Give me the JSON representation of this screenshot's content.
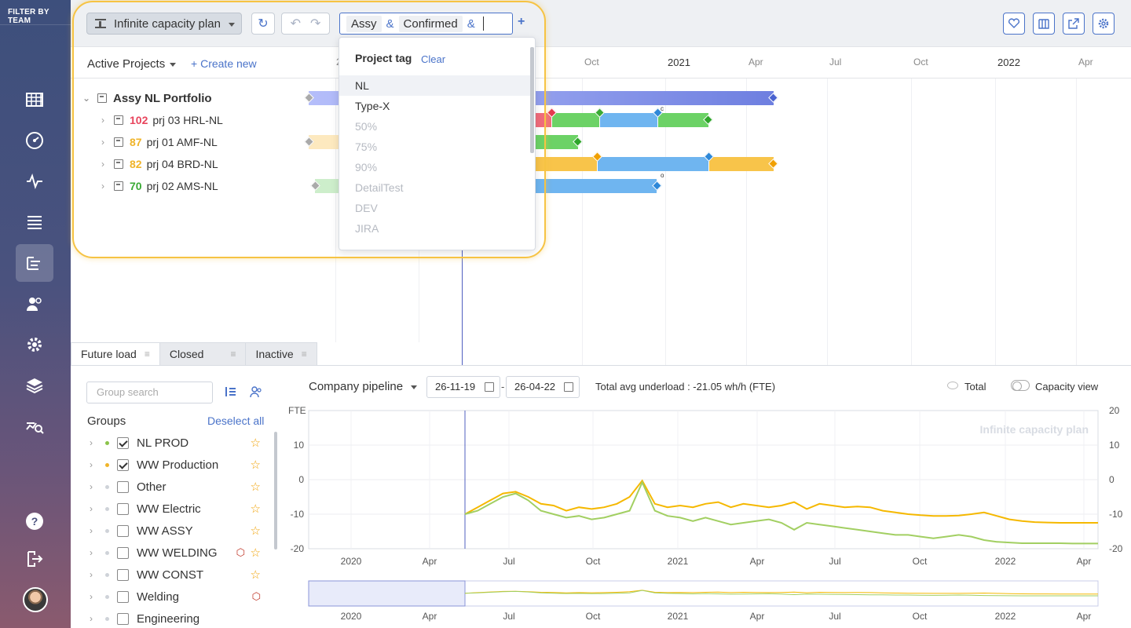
{
  "sidebar": {
    "header": "FILTER BY TEAM",
    "items": [
      {
        "name": "calendar-grid-icon"
      },
      {
        "name": "dashboard-gauge-icon"
      },
      {
        "name": "activity-pulse-icon"
      },
      {
        "name": "list-icon"
      },
      {
        "name": "gantt-icon",
        "active": true
      },
      {
        "name": "users-icon"
      },
      {
        "name": "settings-gear-icon"
      },
      {
        "name": "layers-icon"
      },
      {
        "name": "analytics-search-icon"
      }
    ],
    "help_icon": "help-icon",
    "logout_icon": "logout-icon"
  },
  "toolbar": {
    "plan_label": "Infinite capacity plan",
    "tags": [
      "Assy",
      "Confirmed"
    ],
    "amp": "&",
    "add": "+",
    "undo": "↶",
    "redo": "↷",
    "refresh": "↻"
  },
  "tag_dropdown": {
    "title": "Project tag",
    "clear": "Clear",
    "items": [
      {
        "label": "NL",
        "enabled": true
      },
      {
        "label": "Type-X",
        "enabled": true
      },
      {
        "label": "50%",
        "enabled": false
      },
      {
        "label": "75%",
        "enabled": false
      },
      {
        "label": "90%",
        "enabled": false
      },
      {
        "label": "DetailTest",
        "enabled": false
      },
      {
        "label": "DEV",
        "enabled": false
      },
      {
        "label": "JIRA",
        "enabled": false
      }
    ]
  },
  "timeline": {
    "view_label": "Active Projects",
    "create_new": "Create new",
    "months": [
      "Oct",
      "2021",
      "Apr",
      "Jul",
      "Oct",
      "2022",
      "Apr"
    ],
    "year_digit": "2"
  },
  "projects": {
    "portfolio": "Assy NL Portfolio",
    "rows": [
      {
        "score": "102",
        "name": "prj 03 HRL-NL",
        "score_color": "#e8455d"
      },
      {
        "score": "87",
        "name": "prj 01 AMF-NL",
        "score_color": "#f0b429"
      },
      {
        "score": "82",
        "name": "prj 04 BRD-NL",
        "score_color": "#f0b429"
      },
      {
        "score": "70",
        "name": "prj 02 AMS-NL",
        "score_color": "#3aaa35"
      }
    ],
    "marker_c": "c",
    "marker_o": "o"
  },
  "bottom_tabs": [
    {
      "label": "Future load",
      "active": true
    },
    {
      "label": "Closed",
      "active": false
    },
    {
      "label": "Inactive",
      "active": false
    }
  ],
  "groups_panel": {
    "search_placeholder": "Group search",
    "title": "Groups",
    "deselect": "Deselect all",
    "items": [
      {
        "label": "NL PROD",
        "checked": true,
        "dot": "#8bc34a",
        "cube": false
      },
      {
        "label": "WW Production",
        "checked": true,
        "dot": "#f0b429",
        "cube": false
      },
      {
        "label": "Other",
        "checked": false,
        "dot": "#cfd3d9",
        "cube": false
      },
      {
        "label": "WW Electric",
        "checked": false,
        "dot": "#cfd3d9",
        "cube": false
      },
      {
        "label": "WW ASSY",
        "checked": false,
        "dot": "#cfd3d9",
        "cube": false
      },
      {
        "label": "WW WELDING",
        "checked": false,
        "dot": "#cfd3d9",
        "cube": true
      },
      {
        "label": "WW CONST",
        "checked": false,
        "dot": "#cfd3d9",
        "cube": false
      },
      {
        "label": "Welding",
        "checked": false,
        "dot": "#cfd3d9",
        "cube": true,
        "no_star": true
      },
      {
        "label": "Engineering",
        "checked": false,
        "dot": "#cfd3d9",
        "cube": false,
        "no_star": true
      }
    ]
  },
  "chart_controls": {
    "pipeline": "Company pipeline",
    "date_from": "26-11-19",
    "date_to": "26-04-22",
    "date_sep": "-",
    "underload": "Total avg underload : -21.05 wh/h (FTE)",
    "total": "Total",
    "capacity_view": "Capacity view"
  },
  "chart_data": {
    "type": "line",
    "ylabel": "FTE",
    "watermark": "Infinite capacity plan",
    "ylim": [
      -20,
      20
    ],
    "yticks_left": [
      10,
      0,
      -10,
      -20
    ],
    "yticks_right": [
      20,
      10,
      0,
      -10,
      -20
    ],
    "xticks": [
      "2020",
      "Apr",
      "Jul",
      "Oct",
      "2021",
      "Apr",
      "Jul",
      "Oct",
      "2022",
      "Apr"
    ],
    "grid": true,
    "series": [
      {
        "color": "#f5b800",
        "x": [
          0,
          0.02,
          0.04,
          0.06,
          0.08,
          0.1,
          0.12,
          0.14,
          0.16,
          0.18,
          0.2,
          0.22,
          0.24,
          0.26,
          0.28,
          0.3,
          0.32,
          0.34,
          0.36,
          0.38,
          0.4,
          0.42,
          0.44,
          0.46,
          0.48,
          0.5,
          0.52,
          0.54,
          0.56,
          0.58,
          0.6,
          0.62,
          0.64,
          0.66,
          0.68,
          0.7,
          0.72,
          0.74,
          0.76,
          0.78,
          0.8,
          0.82,
          0.84,
          0.86,
          0.88,
          0.9,
          0.92,
          0.94,
          0.96,
          0.98,
          1.0
        ],
        "values": [
          -10,
          -8,
          -6,
          -4,
          -3.5,
          -5,
          -7,
          -7.5,
          -9,
          -8,
          -8.5,
          -8,
          -7,
          -5,
          -0.3,
          -7,
          -8,
          -7.5,
          -8,
          -7,
          -6.5,
          -8,
          -7,
          -7.5,
          -8,
          -7.5,
          -6.5,
          -8.5,
          -7,
          -7.5,
          -8,
          -7.8,
          -8,
          -9,
          -9.5,
          -10,
          -10.3,
          -10.5,
          -10.5,
          -10.4,
          -10,
          -9.5,
          -10.5,
          -11.5,
          -12,
          -12.3,
          -12.4,
          -12.5,
          -12.5,
          -12.5,
          -12.5
        ]
      },
      {
        "color": "#a2cf62",
        "x": [
          0,
          0.02,
          0.04,
          0.06,
          0.08,
          0.1,
          0.12,
          0.14,
          0.16,
          0.18,
          0.2,
          0.22,
          0.24,
          0.26,
          0.28,
          0.3,
          0.32,
          0.34,
          0.36,
          0.38,
          0.4,
          0.42,
          0.44,
          0.46,
          0.48,
          0.5,
          0.52,
          0.54,
          0.56,
          0.58,
          0.6,
          0.62,
          0.64,
          0.66,
          0.68,
          0.7,
          0.72,
          0.74,
          0.76,
          0.78,
          0.8,
          0.82,
          0.84,
          0.86,
          0.88,
          0.9,
          0.92,
          0.94,
          0.96,
          0.98,
          1.0
        ],
        "values": [
          -10,
          -9,
          -7,
          -5,
          -4,
          -6,
          -9,
          -10,
          -11,
          -10.5,
          -11.5,
          -11,
          -10,
          -9,
          -0.8,
          -9,
          -10.5,
          -11,
          -12,
          -11,
          -12,
          -13,
          -12.5,
          -12,
          -11.5,
          -12.5,
          -14.5,
          -12.5,
          -13,
          -13.5,
          -14,
          -14.5,
          -15,
          -15.5,
          -16,
          -16,
          -16.5,
          -17,
          -16.5,
          -16,
          -16.5,
          -17.5,
          -18,
          -18.2,
          -18.4,
          -18.4,
          -18.4,
          -18.4,
          -18.5,
          -18.5,
          -18.5
        ]
      }
    ]
  }
}
